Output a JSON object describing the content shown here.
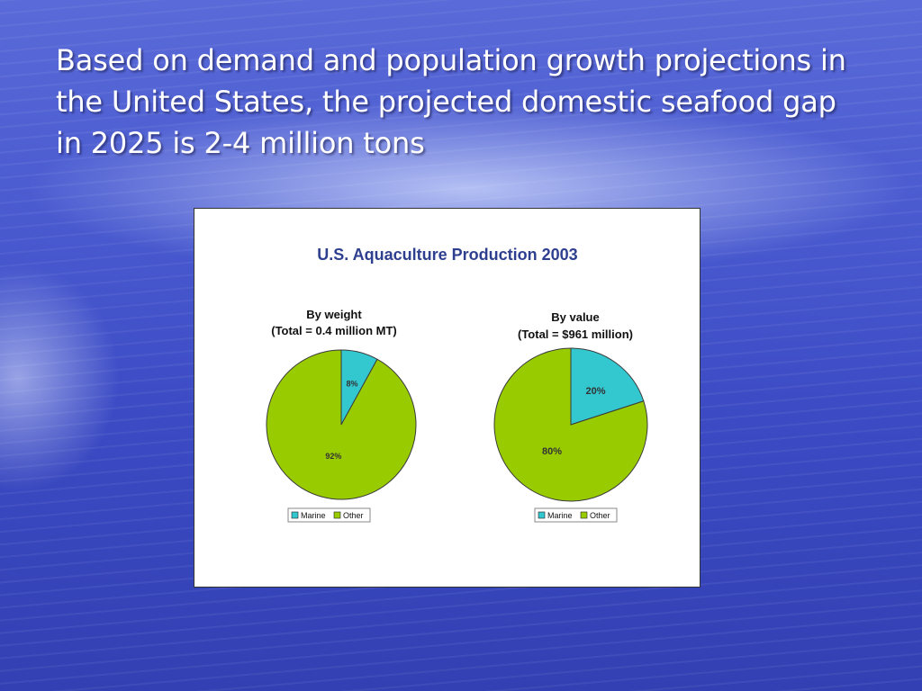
{
  "slide": {
    "title": "Based on demand and population growth projections in the United States, the projected domestic seafood gap in 2025 is 2-4 million tons"
  },
  "colors": {
    "marine": "#33c7cf",
    "other": "#99cc00",
    "title_text": "#2e3f8f",
    "background": "#4a5bd0"
  },
  "chart_data": [
    {
      "type": "pie",
      "title": "U.S. Aquaculture Production 2003",
      "subtitle_line1": "By weight",
      "subtitle_line2": "(Total = 0.4 million MT)",
      "labels": [
        "Marine",
        "Other"
      ],
      "values": [
        8,
        92
      ],
      "data_labels": [
        "8%",
        "92%"
      ],
      "legend": [
        "Marine",
        "Other"
      ],
      "legend_position": "bottom"
    },
    {
      "type": "pie",
      "title": "U.S. Aquaculture Production 2003",
      "subtitle_line1": "By value",
      "subtitle_line2": "(Total = $961 million)",
      "labels": [
        "Marine",
        "Other"
      ],
      "values": [
        20,
        80
      ],
      "data_labels": [
        "20%",
        "80%"
      ],
      "legend": [
        "Marine",
        "Other"
      ],
      "legend_position": "bottom"
    }
  ]
}
